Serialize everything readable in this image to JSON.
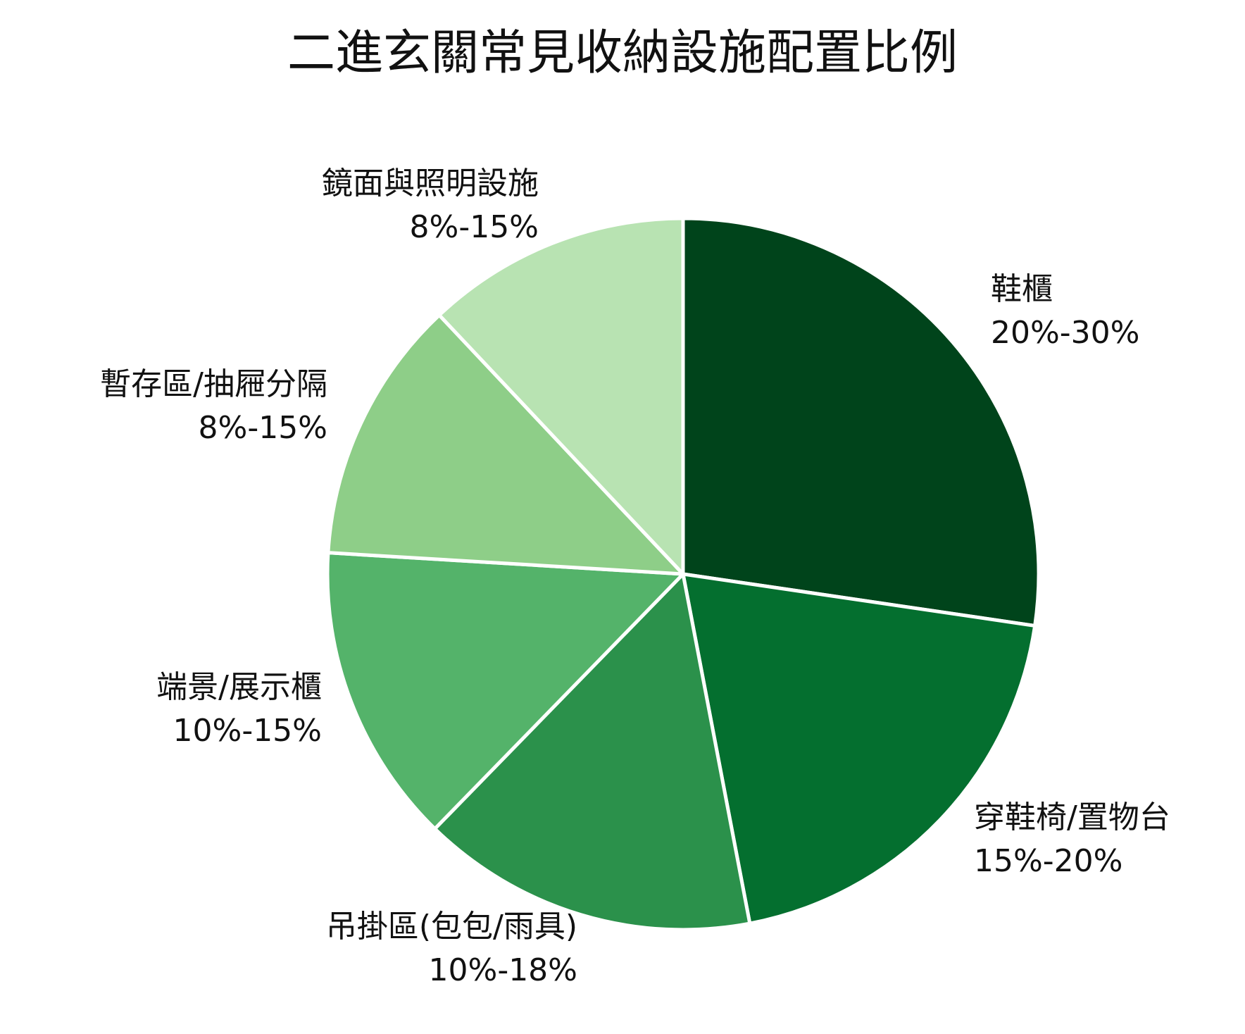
{
  "chart_data": {
    "type": "pie",
    "title": "二進玄關常見收納設施配置比例",
    "start_angle_deg": 90,
    "direction": "clockwise",
    "slices": [
      {
        "label": "鞋櫃",
        "range_text": "20%-30%",
        "value": 25,
        "color": "#00441b"
      },
      {
        "label": "穿鞋椅/置物台",
        "range_text": "15%-20%",
        "value": 18,
        "color": "#046f2f"
      },
      {
        "label": "吊掛區(包包/雨具)",
        "range_text": "10%-18%",
        "value": 14,
        "color": "#2b914b"
      },
      {
        "label": "端景/展示櫃",
        "range_text": "10%-15%",
        "value": 12.5,
        "color": "#54b36a"
      },
      {
        "label": "暫存區/抽屜分隔",
        "range_text": "8%-15%",
        "value": 11,
        "color": "#8ece88"
      },
      {
        "label": "鏡面與照明設施",
        "range_text": "8%-15%",
        "value": 11,
        "color": "#b8e3b2"
      }
    ]
  }
}
